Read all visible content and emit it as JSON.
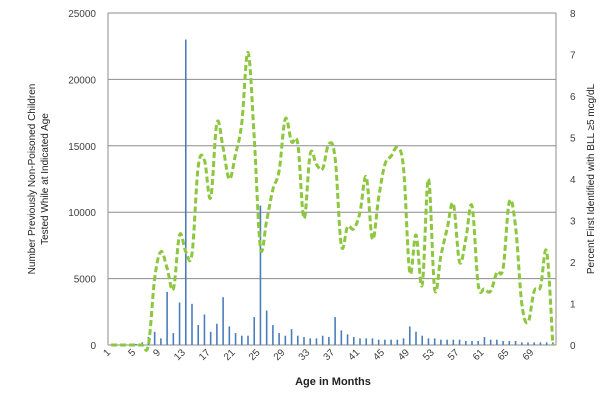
{
  "chart_data": {
    "type": "bar",
    "xlabel": "Age in Months",
    "ylabel": "Number Previously Non-Poisoned Children Tested While at Indicated Age",
    "y2label": "Percent First Identified with BLL ≥5 mcg/dL",
    "ylim": [
      0,
      25000
    ],
    "y2lim": [
      0,
      8
    ],
    "yticks": [
      0,
      5000,
      10000,
      15000,
      20000,
      25000
    ],
    "y2ticks": [
      0,
      1,
      2,
      3,
      4,
      5,
      6,
      7,
      8
    ],
    "grid": true,
    "x": [
      1,
      2,
      3,
      4,
      5,
      6,
      7,
      8,
      9,
      10,
      11,
      12,
      13,
      14,
      15,
      16,
      17,
      18,
      19,
      20,
      21,
      22,
      23,
      24,
      25,
      26,
      27,
      28,
      29,
      30,
      31,
      32,
      33,
      34,
      35,
      36,
      37,
      38,
      39,
      40,
      41,
      42,
      43,
      44,
      45,
      46,
      47,
      48,
      49,
      50,
      51,
      52,
      53,
      54,
      55,
      56,
      57,
      58,
      59,
      60,
      61,
      62,
      63,
      64,
      65,
      66,
      67,
      68,
      69,
      70,
      71,
      72
    ],
    "xtick_labels": [
      "1",
      "5",
      "9",
      "13",
      "17",
      "21",
      "25",
      "29",
      "33",
      "37",
      "41",
      "45",
      "49",
      "53",
      "57",
      "61",
      "65",
      "69"
    ],
    "series": [
      {
        "type": "bar",
        "axis": "left",
        "color": "#4a7ebb",
        "values": [
          10,
          20,
          30,
          40,
          80,
          200,
          600,
          1000,
          500,
          4000,
          900,
          3200,
          23000,
          3100,
          1500,
          2300,
          1000,
          1600,
          3600,
          1400,
          900,
          700,
          700,
          2100,
          10500,
          2600,
          1500,
          900,
          700,
          1200,
          700,
          600,
          500,
          500,
          700,
          600,
          2100,
          1100,
          800,
          600,
          500,
          500,
          500,
          400,
          400,
          400,
          400,
          500,
          1400,
          1000,
          700,
          500,
          500,
          400,
          400,
          400,
          400,
          300,
          300,
          300,
          600,
          400,
          400,
          300,
          300,
          300,
          200,
          200,
          200,
          200,
          200,
          200
        ]
      },
      {
        "type": "line",
        "axis": "right",
        "style": "dashed",
        "color": "#8dc63f",
        "values": [
          0,
          0,
          0,
          0,
          0,
          0,
          0,
          1.6,
          2.25,
          1.85,
          1.35,
          2.65,
          2.25,
          2.2,
          4.3,
          4.45,
          3.55,
          5.35,
          4.75,
          4.0,
          4.6,
          5.35,
          7.05,
          5.0,
          2.35,
          3.0,
          3.75,
          4.2,
          5.45,
          4.9,
          4.85,
          3.05,
          4.6,
          4.35,
          4.25,
          4.85,
          4.5,
          2.4,
          2.85,
          2.8,
          3.2,
          4.05,
          2.55,
          3.55,
          4.35,
          4.55,
          4.75,
          4.25,
          1.75,
          2.65,
          1.45,
          4.0,
          1.35,
          2.15,
          2.8,
          3.4,
          2.0,
          2.55,
          3.35,
          1.45,
          1.35,
          1.3,
          1.75,
          1.85,
          3.45,
          2.85,
          1.0,
          0.55,
          1.3,
          1.4,
          2.25,
          0
        ]
      }
    ]
  }
}
